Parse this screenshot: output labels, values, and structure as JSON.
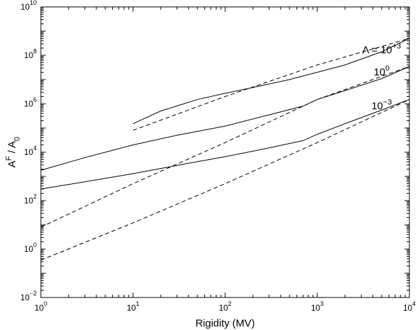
{
  "chart_data": {
    "type": "line",
    "title": "",
    "xlabel": "Rigidity (MV)",
    "ylabel": "A^F / A_0",
    "xscale": "log",
    "yscale": "log",
    "xlim": [
      1,
      10000
    ],
    "ylim": [
      0.01,
      10000000000
    ],
    "grid": false,
    "legend": "none",
    "x_ticks": [
      {
        "base": "10",
        "exp": "0"
      },
      {
        "base": "10",
        "exp": "1"
      },
      {
        "base": "10",
        "exp": "2"
      },
      {
        "base": "10",
        "exp": "3"
      },
      {
        "base": "10",
        "exp": "4"
      }
    ],
    "y_ticks": [
      {
        "base": "10",
        "exp": "−2"
      },
      {
        "base": "10",
        "exp": "0"
      },
      {
        "base": "10",
        "exp": "2"
      },
      {
        "base": "10",
        "exp": "4"
      },
      {
        "base": "10",
        "exp": "6"
      },
      {
        "base": "10",
        "exp": "8"
      },
      {
        "base": "10",
        "exp": "10"
      }
    ],
    "annotations": [
      {
        "prefix": "Λ = ",
        "base": "10",
        "exp": "+3",
        "x": 5000,
        "y": 120000000
      },
      {
        "prefix": "",
        "base": "10",
        "exp": "0",
        "x": 5000,
        "y": 15000000
      },
      {
        "prefix": "",
        "base": "10",
        "exp": "−3",
        "x": 5000,
        "y": 600000
      }
    ],
    "series": [
      {
        "style": "solid",
        "x": [
          10,
          20,
          50,
          100,
          200,
          500,
          700,
          1000,
          2000,
          5000,
          10000
        ],
        "y": [
          150000,
          500000,
          1500000,
          2700000,
          4700000,
          10000000,
          14000000,
          20000000,
          40000000,
          140000000,
          500000000
        ]
      },
      {
        "style": "dashed",
        "x": [
          10,
          100,
          1000,
          10000
        ],
        "y": [
          80000,
          2000000,
          40000000,
          500000000
        ]
      },
      {
        "style": "solid",
        "x": [
          1,
          3,
          10,
          30,
          100,
          300,
          700,
          1000,
          2000,
          5000,
          10000
        ],
        "y": [
          1800,
          6000,
          20000,
          50000,
          120000,
          350000,
          800000,
          1500000,
          3500000,
          11000000,
          35000000
        ]
      },
      {
        "style": "dashed",
        "x": [
          1,
          10,
          100,
          1000,
          10000
        ],
        "y": [
          8,
          500,
          25000,
          1500000,
          35000000
        ]
      },
      {
        "style": "solid",
        "x": [
          1,
          3,
          10,
          40,
          100,
          300,
          700,
          1000,
          2000,
          5000,
          10000
        ],
        "y": [
          300,
          600,
          1300,
          3500,
          6500,
          15000,
          30000,
          55000,
          150000,
          550000,
          1500000
        ]
      },
      {
        "style": "dashed",
        "x": [
          1,
          10,
          100,
          1000,
          10000
        ],
        "y": [
          0.35,
          12,
          500,
          25000,
          1500000
        ]
      }
    ]
  }
}
